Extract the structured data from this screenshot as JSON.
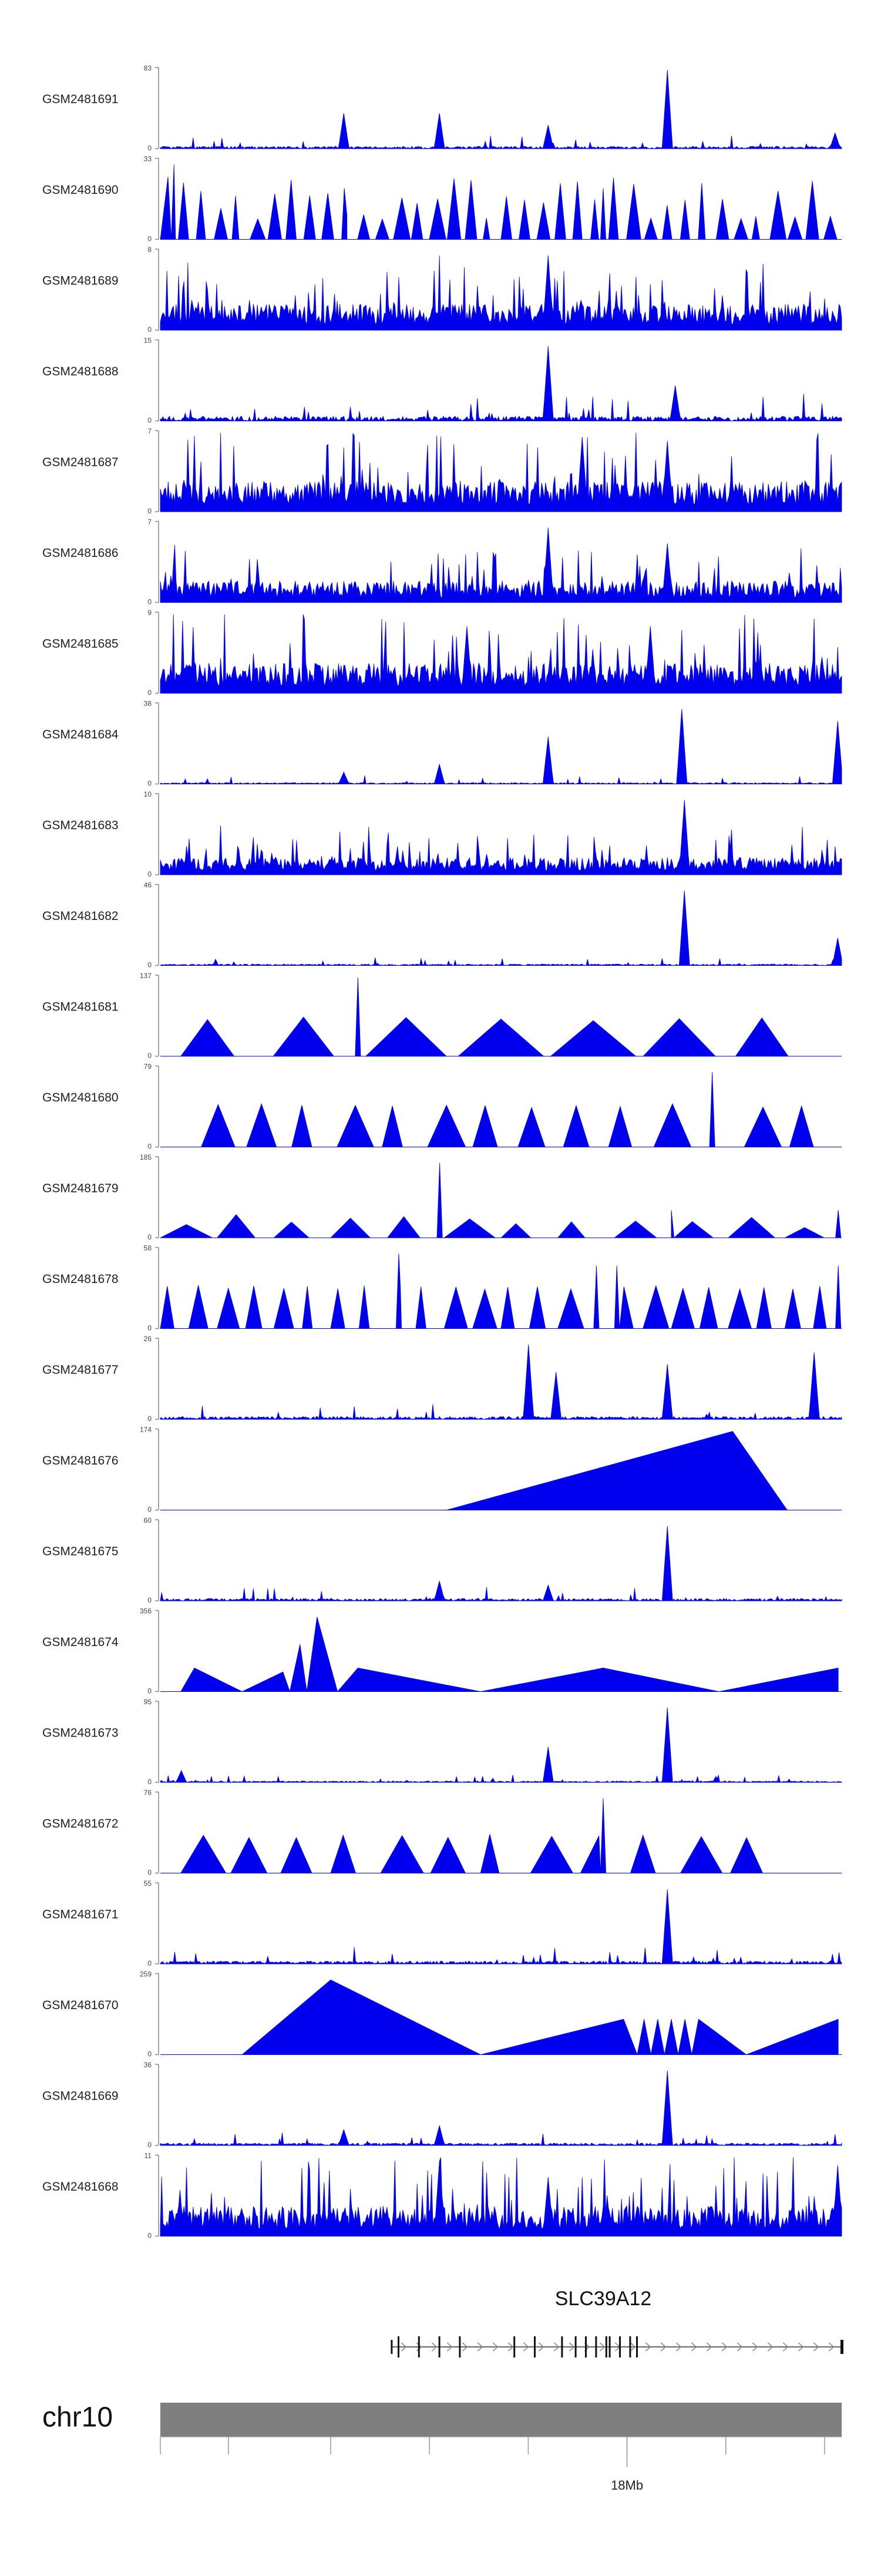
{
  "colors": {
    "track_fill": "#0000ee",
    "axis": "#888888",
    "label": "#222222",
    "chrom_bar": "#7f7f7f",
    "gene": "#666666"
  },
  "chart_data": {
    "type": "area",
    "title": "",
    "xlabel": "",
    "ylabel": "",
    "tracks": [
      {
        "name": "GSM2481691",
        "ymax": 83,
        "ymax_label": "83",
        "ymin_label": "0",
        "profile": "peaky",
        "seed": 11,
        "noise": 0.05,
        "peaks": [
          [
            0.27,
            0.45
          ],
          [
            0.41,
            0.45
          ],
          [
            0.57,
            0.3
          ],
          [
            0.745,
            1.0
          ],
          [
            0.99,
            0.2
          ]
        ]
      },
      {
        "name": "GSM2481690",
        "ymax": 33,
        "ymax_label": "33",
        "ymin_label": "0",
        "profile": "triangles",
        "seed": 12,
        "count": 38,
        "start": 0.0,
        "end": 1.0,
        "min": 0.25,
        "max": 0.8,
        "peaks": [
          [
            0.02,
            0.95
          ],
          [
            0.27,
            0.65
          ],
          [
            0.65,
            0.65
          ]
        ]
      },
      {
        "name": "GSM2481689",
        "ymax": 8,
        "ymax_label": "8",
        "ymin_label": "0",
        "profile": "dense",
        "seed": 13,
        "noise": 0.3,
        "peaks": [
          [
            0.57,
            0.95
          ]
        ]
      },
      {
        "name": "GSM2481688",
        "ymax": 15,
        "ymax_label": "15",
        "ymin_label": "0",
        "profile": "peaky",
        "seed": 14,
        "noise": 0.1,
        "peaks": [
          [
            0.57,
            0.95
          ],
          [
            0.755,
            0.45
          ]
        ]
      },
      {
        "name": "GSM2481687",
        "ymax": 7,
        "ymax_label": "7",
        "ymin_label": "0",
        "profile": "dense",
        "seed": 15,
        "noise": 0.35,
        "peaks": [
          [
            0.62,
            0.95
          ],
          [
            0.745,
            0.9
          ]
        ]
      },
      {
        "name": "GSM2481686",
        "ymax": 7,
        "ymax_label": "7",
        "ymin_label": "0",
        "profile": "dense",
        "seed": 16,
        "noise": 0.25,
        "peaks": [
          [
            0.57,
            0.95
          ],
          [
            0.745,
            0.75
          ]
        ]
      },
      {
        "name": "GSM2481685",
        "ymax": 9,
        "ymax_label": "9",
        "ymin_label": "0",
        "profile": "dense",
        "seed": 17,
        "noise": 0.35,
        "peaks": [
          [
            0.45,
            0.85
          ],
          [
            0.72,
            0.85
          ]
        ]
      },
      {
        "name": "GSM2481684",
        "ymax": 38,
        "ymax_label": "38",
        "ymin_label": "0",
        "profile": "peaky",
        "seed": 18,
        "noise": 0.03,
        "peaks": [
          [
            0.27,
            0.15
          ],
          [
            0.41,
            0.25
          ],
          [
            0.57,
            0.6
          ],
          [
            0.765,
            0.95
          ],
          [
            0.995,
            0.8
          ]
        ]
      },
      {
        "name": "GSM2481683",
        "ymax": 10,
        "ymax_label": "10",
        "ymin_label": "0",
        "profile": "dense",
        "seed": 19,
        "noise": 0.2,
        "peaks": [
          [
            0.77,
            0.95
          ]
        ]
      },
      {
        "name": "GSM2481682",
        "ymax": 46,
        "ymax_label": "46",
        "ymin_label": "0",
        "profile": "peaky",
        "seed": 20,
        "noise": 0.03,
        "peaks": [
          [
            0.77,
            0.95
          ],
          [
            0.995,
            0.35
          ]
        ]
      },
      {
        "name": "GSM2481681",
        "ymax": 137,
        "ymax_label": "137",
        "ymin_label": "0",
        "profile": "triangles",
        "seed": 21,
        "count": 7,
        "start": 0.03,
        "end": 0.98,
        "min": 0.45,
        "max": 0.5,
        "peaks": [
          [
            0.29,
            1.0
          ]
        ]
      },
      {
        "name": "GSM2481680",
        "ymax": 79,
        "ymax_label": "79",
        "ymin_label": "0",
        "profile": "triangles",
        "seed": 22,
        "count": 14,
        "start": 0.06,
        "end": 0.99,
        "min": 0.5,
        "max": 0.55,
        "peaks": [
          [
            0.81,
            0.95
          ]
        ]
      },
      {
        "name": "GSM2481679",
        "ymax": 185,
        "ymax_label": "185",
        "ymin_label": "0",
        "profile": "triangles",
        "seed": 23,
        "count": 12,
        "start": 0.0,
        "end": 1.0,
        "min": 0.12,
        "max": 0.3,
        "peaks": [
          [
            0.41,
            0.95
          ],
          [
            0.75,
            0.35
          ],
          [
            0.995,
            0.35
          ]
        ]
      },
      {
        "name": "GSM2481678",
        "ymax": 58,
        "ymax_label": "58",
        "ymin_label": "0",
        "profile": "triangles",
        "seed": 24,
        "count": 24,
        "start": 0.0,
        "end": 1.0,
        "min": 0.5,
        "max": 0.55,
        "peaks": [
          [
            0.35,
            0.95
          ],
          [
            0.64,
            0.8
          ],
          [
            0.67,
            0.8
          ],
          [
            0.995,
            0.8
          ]
        ]
      },
      {
        "name": "GSM2481677",
        "ymax": 26,
        "ymax_label": "26",
        "ymin_label": "0",
        "profile": "peaky",
        "seed": 25,
        "noise": 0.06,
        "peaks": [
          [
            0.54,
            0.95
          ],
          [
            0.58,
            0.6
          ],
          [
            0.745,
            0.7
          ],
          [
            0.96,
            0.85
          ]
        ]
      },
      {
        "name": "GSM2481676",
        "ymax": 174,
        "ymax_label": "174",
        "ymin_label": "0",
        "profile": "polygon",
        "seed": 26,
        "points": [
          [
            0.42,
            0.0
          ],
          [
            0.84,
            1.0
          ],
          [
            0.92,
            0.0
          ]
        ]
      },
      {
        "name": "GSM2481675",
        "ymax": 60,
        "ymax_label": "60",
        "ymin_label": "0",
        "profile": "peaky",
        "seed": 27,
        "noise": 0.05,
        "peaks": [
          [
            0.41,
            0.25
          ],
          [
            0.57,
            0.2
          ],
          [
            0.745,
            0.95
          ]
        ]
      },
      {
        "name": "GSM2481674",
        "ymax": 356,
        "ymax_label": "356",
        "ymin_label": "0",
        "profile": "polygon",
        "seed": 28,
        "points": [
          [
            0.03,
            0.0
          ],
          [
            0.05,
            0.3
          ],
          [
            0.12,
            0.0
          ],
          [
            0.18,
            0.25
          ],
          [
            0.19,
            0.0
          ],
          [
            0.205,
            0.6
          ],
          [
            0.215,
            0.0
          ],
          [
            0.23,
            0.95
          ],
          [
            0.26,
            0.0
          ],
          [
            0.29,
            0.3
          ],
          [
            0.47,
            0.0
          ],
          [
            0.65,
            0.3
          ],
          [
            0.82,
            0.0
          ],
          [
            0.995,
            0.3
          ],
          [
            0.995,
            0.0
          ]
        ]
      },
      {
        "name": "GSM2481673",
        "ymax": 95,
        "ymax_label": "95",
        "ymin_label": "0",
        "profile": "peaky",
        "seed": 29,
        "noise": 0.03,
        "peaks": [
          [
            0.03,
            0.15
          ],
          [
            0.57,
            0.45
          ],
          [
            0.745,
            0.95
          ]
        ]
      },
      {
        "name": "GSM2481672",
        "ymax": 76,
        "ymax_label": "76",
        "ymin_label": "0",
        "profile": "triangles",
        "seed": 30,
        "count": 12,
        "start": 0.03,
        "end": 0.91,
        "min": 0.45,
        "max": 0.5,
        "peaks": [
          [
            0.65,
            0.95
          ]
        ]
      },
      {
        "name": "GSM2481671",
        "ymax": 55,
        "ymax_label": "55",
        "ymin_label": "0",
        "profile": "peaky",
        "seed": 31,
        "noise": 0.06,
        "peaks": [
          [
            0.745,
            0.95
          ]
        ]
      },
      {
        "name": "GSM2481670",
        "ymax": 259,
        "ymax_label": "259",
        "ymin_label": "0",
        "profile": "polygon",
        "seed": 32,
        "points": [
          [
            0.12,
            0.0
          ],
          [
            0.25,
            0.95
          ],
          [
            0.47,
            0.0
          ],
          [
            0.68,
            0.45
          ],
          [
            0.7,
            0.0
          ],
          [
            0.71,
            0.45
          ],
          [
            0.72,
            0.0
          ],
          [
            0.73,
            0.45
          ],
          [
            0.74,
            0.0
          ],
          [
            0.75,
            0.45
          ],
          [
            0.76,
            0.0
          ],
          [
            0.77,
            0.45
          ],
          [
            0.78,
            0.0
          ],
          [
            0.79,
            0.45
          ],
          [
            0.86,
            0.0
          ],
          [
            0.995,
            0.45
          ],
          [
            0.995,
            0.0
          ]
        ]
      },
      {
        "name": "GSM2481669",
        "ymax": 36,
        "ymax_label": "36",
        "ymin_label": "0",
        "profile": "peaky",
        "seed": 33,
        "noise": 0.05,
        "peaks": [
          [
            0.27,
            0.2
          ],
          [
            0.41,
            0.25
          ],
          [
            0.745,
            0.95
          ]
        ]
      },
      {
        "name": "GSM2481668",
        "ymax": 11,
        "ymax_label": "11",
        "ymin_label": "0",
        "profile": "dense",
        "seed": 34,
        "noise": 0.35,
        "peaks": [
          [
            0.41,
            0.95
          ],
          [
            0.57,
            0.75
          ],
          [
            0.995,
            0.9
          ]
        ]
      }
    ],
    "gene_track": {
      "name": "SLC39A12",
      "strand": "+",
      "start_frac": 0.34,
      "end_frac": 1.0,
      "exons_frac": [
        0.34,
        0.35,
        0.38,
        0.41,
        0.44,
        0.52,
        0.55,
        0.59,
        0.61,
        0.625,
        0.64,
        0.655,
        0.66,
        0.675,
        0.69,
        0.7,
        1.0
      ]
    },
    "chromosome": {
      "label": "chr10",
      "tick_label": "18Mb",
      "tick_label_frac": 0.685,
      "ticks_frac": [
        0.0,
        0.1,
        0.25,
        0.395,
        0.54,
        0.685,
        0.83,
        0.975
      ]
    }
  }
}
